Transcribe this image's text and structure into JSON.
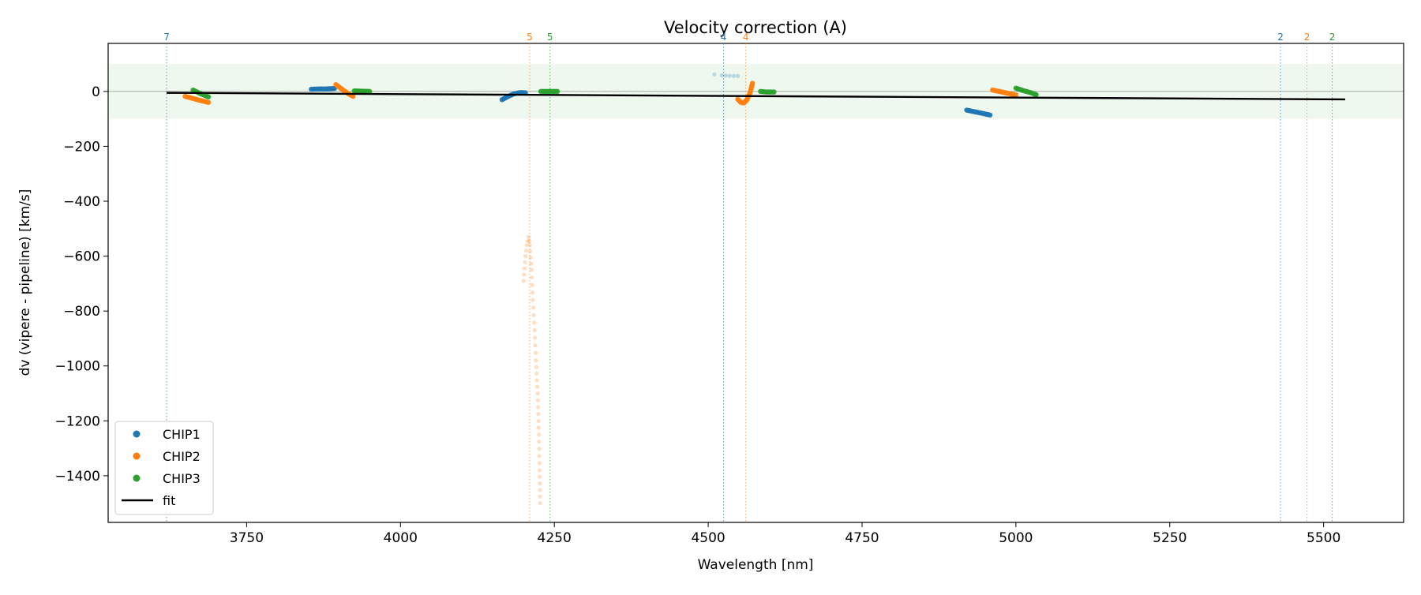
{
  "chart_data": {
    "type": "scatter",
    "title": "Velocity correction (A)",
    "xlabel": "Wavelength [nm]",
    "ylabel": "dv (vipere - pipeline) [km/s]",
    "xlim": [
      3525,
      5630
    ],
    "ylim": [
      -1570,
      175
    ],
    "xticks": [
      3750,
      4000,
      4250,
      4500,
      4750,
      5000,
      5250,
      5500
    ],
    "yticks": [
      0,
      -200,
      -400,
      -600,
      -800,
      -1000,
      -1200,
      -1400
    ],
    "xtick_labels": [
      "3750",
      "4000",
      "4250",
      "4500",
      "4750",
      "5000",
      "5250",
      "5500"
    ],
    "ytick_labels": [
      "0",
      "−200",
      "−400",
      "−600",
      "−800",
      "−1000",
      "−1200",
      "−1400"
    ],
    "grid": false,
    "legend_position": "lower-left",
    "band": {
      "y_from": -100,
      "y_to": 100,
      "color": "#2ca02c"
    },
    "zero_line": 0,
    "colors": {
      "CHIP1": "#1f77b4",
      "CHIP2": "#ff7f0e",
      "CHIP3": "#2ca02c",
      "fit": "#000000"
    },
    "series": [
      {
        "name": "CHIP1",
        "segments": [
          {
            "x": [
              3855,
              3868,
              3880,
              3893
            ],
            "y": [
              8,
              9,
              9,
              11
            ]
          },
          {
            "x": [
              4165,
              4175,
              4185,
              4195,
              4203
            ],
            "y": [
              -30,
              -18,
              -8,
              -4,
              -5
            ]
          },
          {
            "x": [
              4510,
              4522,
              4535,
              4548
            ],
            "y": [
              62,
              59,
              57,
              56
            ],
            "faint": true
          },
          {
            "x": [
              4920,
              4933,
              4946,
              4958
            ],
            "y": [
              -68,
              -74,
              -80,
              -86
            ]
          }
        ]
      },
      {
        "name": "CHIP2",
        "segments": [
          {
            "x": [
              3650,
              3662,
              3675,
              3688
            ],
            "y": [
              -18,
              -25,
              -33,
              -40
            ]
          },
          {
            "x": [
              3895,
              3905,
              3915,
              3923
            ],
            "y": [
              25,
              8,
              -8,
              -18
            ]
          },
          {
            "x": [
              4200,
              4203,
              4205,
              4208,
              4210,
              4213,
              4215,
              4218,
              4220,
              4223,
              4225,
              4226,
              4227
            ],
            "y": [
              -690,
              -600,
              -560,
              -530,
              -560,
              -650,
              -760,
              -870,
              -980,
              -1100,
              -1250,
              -1380,
              -1500
            ],
            "faint": true
          },
          {
            "x": [
              4548,
              4553,
              4558,
              4563,
              4568,
              4572
            ],
            "y": [
              -28,
              -40,
              -42,
              -30,
              -5,
              30
            ]
          },
          {
            "x": [
              4962,
              4975,
              4988,
              5000
            ],
            "y": [
              5,
              -1,
              -7,
              -13
            ]
          }
        ]
      },
      {
        "name": "CHIP3",
        "segments": [
          {
            "x": [
              3663,
              3675,
              3688
            ],
            "y": [
              5,
              -8,
              -20
            ]
          },
          {
            "x": [
              3925,
              3937,
              3950
            ],
            "y": [
              2,
              1,
              0
            ]
          },
          {
            "x": [
              4228,
              4240,
              4255
            ],
            "y": [
              0,
              0,
              0
            ]
          },
          {
            "x": [
              4585,
              4595,
              4607
            ],
            "y": [
              0,
              -2,
              -2
            ]
          },
          {
            "x": [
              5000,
              5012,
              5025,
              5033
            ],
            "y": [
              12,
              3,
              -5,
              -12
            ]
          }
        ]
      }
    ],
    "fit": {
      "name": "fit",
      "x": [
        3620,
        5535
      ],
      "y": [
        -5,
        -29
      ]
    },
    "order_lines": [
      {
        "x": 3620,
        "label": "7",
        "chip": "CHIP1"
      },
      {
        "x": 4210,
        "label": "5",
        "chip": "CHIP2"
      },
      {
        "x": 4243,
        "label": "5",
        "chip": "CHIP3"
      },
      {
        "x": 4525,
        "label": "4",
        "chip": "CHIP1"
      },
      {
        "x": 4561,
        "label": "4",
        "chip": "CHIP2"
      },
      {
        "x": 5430,
        "label": "2",
        "chip": "CHIP1"
      },
      {
        "x": 5473,
        "label": "2",
        "chip": "CHIP2"
      },
      {
        "x": 5514,
        "label": "2",
        "chip": "CHIP3"
      }
    ],
    "legend": [
      "CHIP1",
      "CHIP2",
      "CHIP3",
      "fit"
    ]
  }
}
